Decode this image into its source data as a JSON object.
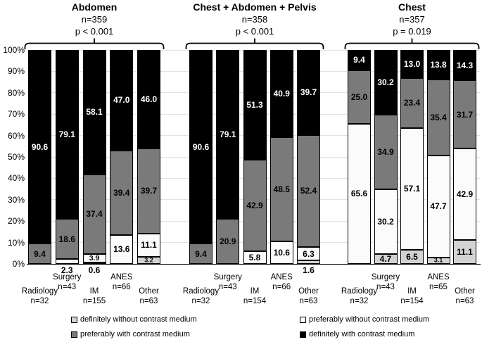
{
  "figure": {
    "background": "#ffffff",
    "text_color": "#000000"
  },
  "legend": {
    "items": [
      {
        "key": "definitely_without",
        "label": "definitely without contrast medium",
        "color": "#d3d3d3"
      },
      {
        "key": "preferably_without",
        "label": "preferably without contrast medium",
        "color": "#fbfbfb"
      },
      {
        "key": "preferably_with",
        "label": "preferably with contrast medium",
        "color": "#7a7a7a"
      },
      {
        "key": "definitely_with",
        "label": "definitely with contrast medium",
        "color": "#000000"
      }
    ]
  },
  "chart_data": {
    "type": "bar",
    "stacked": true,
    "unit": "percent",
    "ylim": [
      0,
      100
    ],
    "grid": true,
    "legend_position": "bottom",
    "y_ticks": [
      "0%",
      "10%",
      "20%",
      "30%",
      "40%",
      "50%",
      "60%",
      "70%",
      "80%",
      "90%",
      "100%"
    ],
    "series_order": [
      "definitely_without",
      "preferably_without",
      "preferably_with",
      "definitely_with"
    ],
    "groups": [
      {
        "title": "Abdomen",
        "n_label": "n=359",
        "p_label": "p < 0.001",
        "bars": [
          {
            "category": "Radiology",
            "n": "n=32",
            "label_row": "low",
            "segments": [
              {
                "key": "preferably_with",
                "value": 9.4
              },
              {
                "key": "definitely_with",
                "value": 90.6
              }
            ]
          },
          {
            "category": "Surgery",
            "n": "n=43",
            "label_row": "high",
            "segments": [
              {
                "key": "preferably_without",
                "value": 2.3,
                "label_position": "below"
              },
              {
                "key": "preferably_with",
                "value": 18.6
              },
              {
                "key": "definitely_with",
                "value": 79.1
              }
            ]
          },
          {
            "category": "IM",
            "n": "n=155",
            "label_row": "low",
            "segments": [
              {
                "key": "definitely_without",
                "value": 0.6,
                "label_position": "below"
              },
              {
                "key": "preferably_without",
                "value": 3.9
              },
              {
                "key": "preferably_with",
                "value": 37.4
              },
              {
                "key": "definitely_with",
                "value": 58.1
              }
            ]
          },
          {
            "category": "ANES",
            "n": "n=66",
            "label_row": "high",
            "segments": [
              {
                "key": "preferably_without",
                "value": 13.6
              },
              {
                "key": "preferably_with",
                "value": 39.4
              },
              {
                "key": "definitely_with",
                "value": 47.0
              }
            ]
          },
          {
            "category": "Other",
            "n": "n=63",
            "label_row": "low",
            "segments": [
              {
                "key": "definitely_without",
                "value": 3.2
              },
              {
                "key": "preferably_without",
                "value": 11.1
              },
              {
                "key": "preferably_with",
                "value": 39.7
              },
              {
                "key": "definitely_with",
                "value": 46.0
              }
            ]
          }
        ]
      },
      {
        "title": "Chest + Abdomen + Pelvis",
        "n_label": "n=358",
        "p_label": "p < 0.001",
        "bars": [
          {
            "category": "Radiology",
            "n": "n=32",
            "label_row": "low",
            "segments": [
              {
                "key": "preferably_with",
                "value": 9.4
              },
              {
                "key": "definitely_with",
                "value": 90.6
              }
            ]
          },
          {
            "category": "Surgery",
            "n": "n=43",
            "label_row": "high",
            "segments": [
              {
                "key": "preferably_with",
                "value": 20.9
              },
              {
                "key": "definitely_with",
                "value": 79.1
              }
            ]
          },
          {
            "category": "IM",
            "n": "n=154",
            "label_row": "low",
            "segments": [
              {
                "key": "preferably_without",
                "value": 5.8
              },
              {
                "key": "preferably_with",
                "value": 42.9
              },
              {
                "key": "definitely_with",
                "value": 51.3
              }
            ]
          },
          {
            "category": "ANES",
            "n": "n=66",
            "label_row": "high",
            "segments": [
              {
                "key": "preferably_without",
                "value": 10.6
              },
              {
                "key": "preferably_with",
                "value": 48.5
              },
              {
                "key": "definitely_with",
                "value": 40.9
              }
            ]
          },
          {
            "category": "Other",
            "n": "n=63",
            "label_row": "low",
            "segments": [
              {
                "key": "definitely_without",
                "value": 1.6,
                "label_position": "below"
              },
              {
                "key": "preferably_without",
                "value": 6.3
              },
              {
                "key": "preferably_with",
                "value": 52.4
              },
              {
                "key": "definitely_with",
                "value": 39.7
              }
            ]
          }
        ]
      },
      {
        "title": "Chest",
        "n_label": "n=357",
        "p_label": "p = 0.019",
        "bars": [
          {
            "category": "Radiology",
            "n": "n=32",
            "label_row": "low",
            "segments": [
              {
                "key": "preferably_without",
                "value": 65.6
              },
              {
                "key": "preferably_with",
                "value": 25.0
              },
              {
                "key": "definitely_with",
                "value": 9.4
              }
            ]
          },
          {
            "category": "Surgery",
            "n": "n=43",
            "label_row": "high",
            "segments": [
              {
                "key": "definitely_without",
                "value": 4.7
              },
              {
                "key": "preferably_without",
                "value": 30.2
              },
              {
                "key": "preferably_with",
                "value": 34.9
              },
              {
                "key": "definitely_with",
                "value": 30.2
              }
            ]
          },
          {
            "category": "IM",
            "n": "n=154",
            "label_row": "low",
            "segments": [
              {
                "key": "definitely_without",
                "value": 6.5
              },
              {
                "key": "preferably_without",
                "value": 57.1
              },
              {
                "key": "preferably_with",
                "value": 23.4
              },
              {
                "key": "definitely_with",
                "value": 13.0
              }
            ]
          },
          {
            "category": "ANES",
            "n": "n=65",
            "label_row": "high",
            "segments": [
              {
                "key": "definitely_without",
                "value": 3.1
              },
              {
                "key": "preferably_without",
                "value": 47.7
              },
              {
                "key": "preferably_with",
                "value": 35.4
              },
              {
                "key": "definitely_with",
                "value": 13.8
              }
            ]
          },
          {
            "category": "Other",
            "n": "n=63",
            "label_row": "low",
            "segments": [
              {
                "key": "definitely_without",
                "value": 11.1
              },
              {
                "key": "preferably_without",
                "value": 42.9
              },
              {
                "key": "preferably_with",
                "value": 31.7
              },
              {
                "key": "definitely_with",
                "value": 14.3
              }
            ]
          }
        ]
      }
    ]
  }
}
